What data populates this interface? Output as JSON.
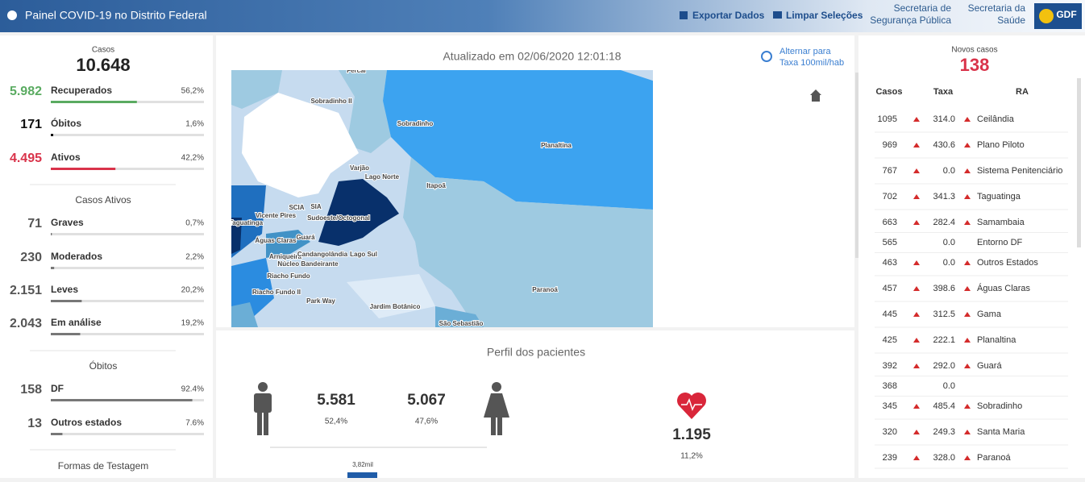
{
  "header": {
    "title": "Painel COVID-19 no Distrito Federal",
    "export": "Exportar Dados",
    "clear": "Limpar Seleções",
    "ssp": [
      "Secretaria de",
      "Segurança Pública"
    ],
    "saude": [
      "Secretaria da",
      "Saúde"
    ],
    "logo": "GDF"
  },
  "summary": {
    "label": "Casos",
    "total": "10.648",
    "rows": [
      {
        "count": "5.982",
        "label": "Recuperados",
        "pct": {
          "value": 56.2,
          "label": "56,2%"
        },
        "color": "#5aab61"
      },
      {
        "count": "171",
        "label": "Óbitos",
        "pct": {
          "value": 1.6,
          "label": "1,6%"
        },
        "color": "#111111"
      },
      {
        "count": "4.495",
        "label": "Ativos",
        "pct": {
          "value": 42.2,
          "label": "42,2%"
        },
        "color": "#d9334a"
      }
    ]
  },
  "active": {
    "title": "Casos Ativos",
    "rows": [
      {
        "count": "71",
        "label": "Graves",
        "pct": {
          "value": 0.7,
          "label": "0,7%"
        }
      },
      {
        "count": "230",
        "label": "Moderados",
        "pct": {
          "value": 2.2,
          "label": "2,2%"
        }
      },
      {
        "count": "2.151",
        "label": "Leves",
        "pct": {
          "value": 20.2,
          "label": "20,2%"
        }
      },
      {
        "count": "2.043",
        "label": "Em análise",
        "pct": {
          "value": 19.2,
          "label": "19,2%"
        }
      }
    ]
  },
  "deaths": {
    "title": "Óbitos",
    "rows": [
      {
        "count": "158",
        "label": "DF",
        "pct": {
          "value": 92.4,
          "label": "92.4%"
        }
      },
      {
        "count": "13",
        "label": "Outros estados",
        "pct": {
          "value": 7.6,
          "label": "7.6%"
        }
      }
    ]
  },
  "testing": {
    "title": "Formas de Testagem"
  },
  "map": {
    "updated": "Atualizado em 02/06/2020 12:01:18",
    "toggle": [
      "Alternar para",
      "Taxa 100mil/hab"
    ],
    "labels": [
      "Fercal",
      "Sobradinho II",
      "Sobradinho",
      "Planaltina",
      "Varjão",
      "Lago Norte",
      "Itapoã",
      "SCIA",
      "SIA",
      "Sudoeste/Octogonal",
      "Vicente Pires",
      "Taguatinga",
      "Águas Claras",
      "Guará",
      "Arniqueira",
      "Núcleo Bandeirante",
      "Candangolândia",
      "Lago Sul",
      "Riacho Fundo",
      "Riacho Fundo II",
      "Park Way",
      "Jardim Botânico",
      "Paranoá",
      "São Sebastião"
    ]
  },
  "profile": {
    "title": "Perfil dos pacientes",
    "men": {
      "count": "5.581",
      "pct": "52,4%"
    },
    "women": {
      "count": "5.067",
      "pct": "47,6%"
    },
    "comorbid": {
      "count": "1.195",
      "pct": "11,2%"
    },
    "bar_label": "3,82mil"
  },
  "new_cases": {
    "label": "Novos casos",
    "total": "138",
    "columns": [
      "Casos",
      "Taxa",
      "RA"
    ],
    "rows": [
      {
        "cases": "1095",
        "rate": "314.0",
        "ra": "Ceilândia",
        "arrow": true
      },
      {
        "cases": "969",
        "rate": "430.6",
        "ra": "Plano Piloto",
        "arrow": true
      },
      {
        "cases": "767",
        "rate": "0.0",
        "ra": "Sistema Penitenciário",
        "arrow": true
      },
      {
        "cases": "702",
        "rate": "341.3",
        "ra": "Taguatinga",
        "arrow": true
      },
      {
        "cases": "663",
        "rate": "282.4",
        "ra": "Samambaia",
        "arrow": true
      },
      {
        "cases": "565",
        "rate": "0.0",
        "ra": "Entorno DF",
        "arrow": false
      },
      {
        "cases": "463",
        "rate": "0.0",
        "ra": "Outros Estados",
        "arrow": true
      },
      {
        "cases": "457",
        "rate": "398.6",
        "ra": "Águas Claras",
        "arrow": true
      },
      {
        "cases": "445",
        "rate": "312.5",
        "ra": "Gama",
        "arrow": true
      },
      {
        "cases": "425",
        "rate": "222.1",
        "ra": "Planaltina",
        "arrow": true
      },
      {
        "cases": "392",
        "rate": "292.0",
        "ra": "Guará",
        "arrow": true
      },
      {
        "cases": "368",
        "rate": "0.0",
        "ra": null,
        "arrow": false
      },
      {
        "cases": "345",
        "rate": "485.4",
        "ra": "Sobradinho",
        "arrow": true
      },
      {
        "cases": "320",
        "rate": "249.3",
        "ra": "Santa Maria",
        "arrow": true
      },
      {
        "cases": "239",
        "rate": "328.0",
        "ra": "Paranoá",
        "arrow": true
      }
    ]
  }
}
